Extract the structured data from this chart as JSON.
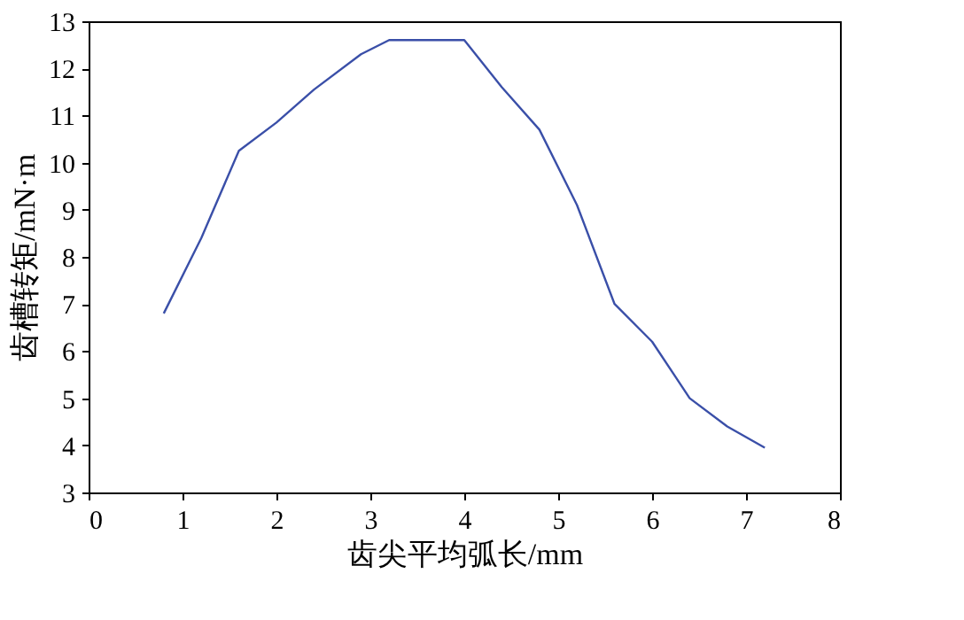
{
  "chart_data": {
    "type": "line",
    "xlabel": "齿尖平均弧长/mm",
    "ylabel": "齿槽转矩/mN·m",
    "x": [
      0.8,
      1.2,
      1.6,
      2.0,
      2.4,
      2.9,
      3.2,
      4.0,
      4.4,
      4.8,
      5.2,
      5.6,
      6.0,
      6.4,
      6.8,
      7.2
    ],
    "series": [
      {
        "color": "#3a4fa8",
        "values": [
          6.8,
          8.4,
          10.25,
          10.85,
          11.55,
          12.3,
          12.6,
          12.6,
          11.6,
          10.7,
          9.1,
          7.0,
          6.2,
          5.0,
          4.4,
          3.95
        ]
      }
    ],
    "xlim": [
      0,
      8
    ],
    "xticks": [
      0,
      1,
      2,
      3,
      4,
      5,
      6,
      7,
      8
    ],
    "ylim": [
      3,
      13
    ],
    "yticks": [
      3,
      4,
      5,
      6,
      7,
      8,
      9,
      10,
      11,
      12,
      13
    ],
    "grid": false,
    "marker": "none",
    "line_style": "solid"
  }
}
